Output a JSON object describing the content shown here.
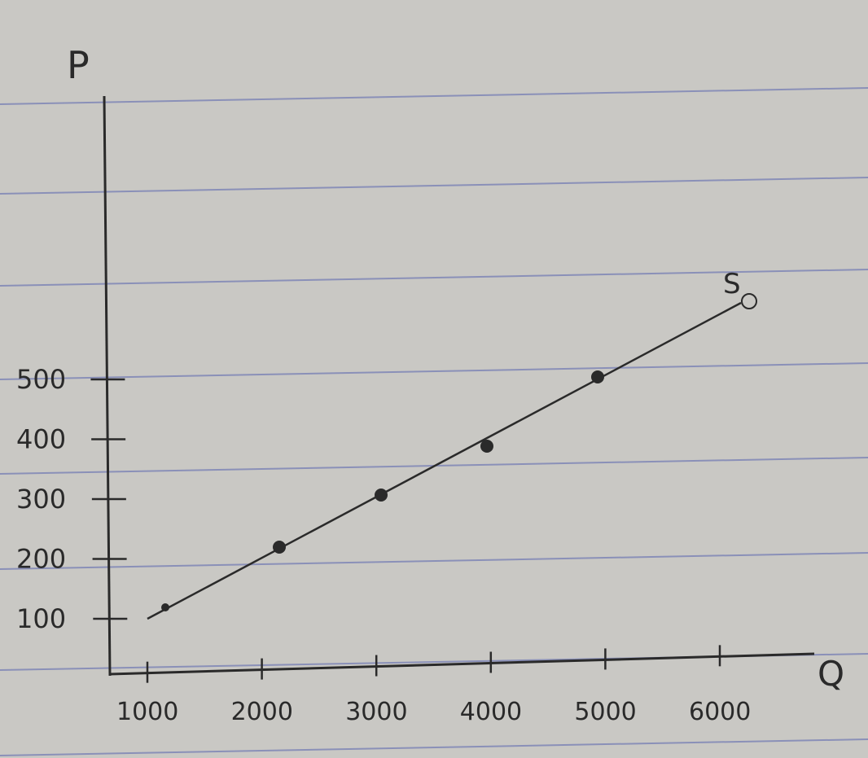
{
  "chart_data": {
    "type": "scatter",
    "xlabel": "Q",
    "ylabel": "P",
    "x_ticks": [
      1000,
      2000,
      3000,
      4000,
      5000,
      6000
    ],
    "x_tick_labels": [
      "1000",
      "2000",
      "3000",
      "4000",
      "5000",
      "6000"
    ],
    "y_ticks": [
      100,
      200,
      300,
      400,
      500
    ],
    "y_tick_labels": [
      "100",
      "200",
      "300",
      "400",
      "500"
    ],
    "xlim": [
      0,
      6600
    ],
    "ylim": [
      0,
      1000
    ],
    "points": [
      {
        "x": 1000,
        "y": 100
      },
      {
        "x": 2000,
        "y": 200
      },
      {
        "x": 3000,
        "y": 300
      },
      {
        "x": 4000,
        "y": 400
      },
      {
        "x": 5000,
        "y": 500
      }
    ],
    "line": {
      "label": "S",
      "from": {
        "x": 1000,
        "y": 100
      },
      "to": {
        "x": 6200,
        "y": 620
      },
      "end_marker": "open-circle"
    },
    "grid": false,
    "legend": "none"
  },
  "colors": {
    "paper": "#c9c8c4",
    "rule_lines": "#8a90b8",
    "ink": "#2a2a2a"
  }
}
